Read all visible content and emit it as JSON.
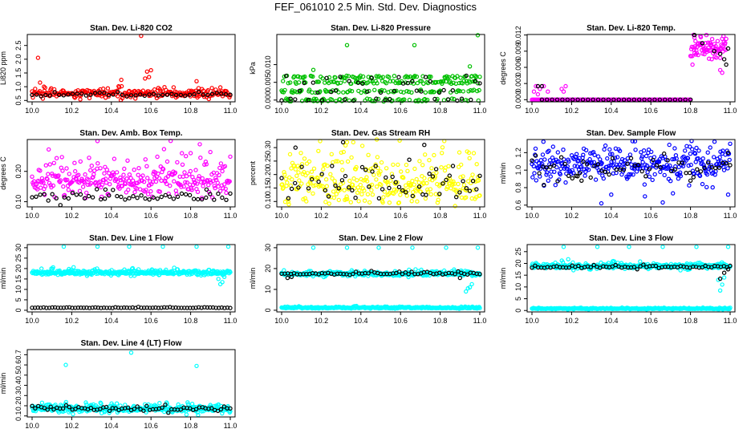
{
  "title": "FEF_061010  2.5 Min. Std. Dev. Diagnostics",
  "colors": {
    "black": "#000000"
  },
  "chart_data": [
    {
      "type": "scatter",
      "title": "Stan. Dev. Li-820 CO2",
      "ylabel": "Li820 ppm",
      "xlim": [
        0.0,
        1.0
      ],
      "ylim": [
        0.45,
        2.9
      ],
      "xticks": [
        0.0,
        0.2,
        0.4,
        0.6,
        0.8,
        1.0
      ],
      "xticklabels": [
        "10.0",
        "10.2",
        "10.4",
        "10.6",
        "10.8",
        "11.0"
      ],
      "yticks": [
        0.5,
        1.0,
        1.5,
        2.0,
        2.5
      ],
      "yticklabels": [
        "0.5",
        "1.0",
        "1.5",
        "2.0",
        "2.5"
      ],
      "color": "#ff0000",
      "series": [
        {
          "role": "colored",
          "base": 0.75,
          "noise": 0.12,
          "count": 260,
          "outliers": [
            [
              0.03,
              2.05
            ],
            [
              0.04,
              1.15
            ],
            [
              0.06,
              1.0
            ],
            [
              0.45,
              1.25
            ],
            [
              0.55,
              2.85
            ],
            [
              0.57,
              1.3
            ],
            [
              0.58,
              1.55
            ],
            [
              0.59,
              1.35
            ],
            [
              0.6,
              1.6
            ],
            [
              0.83,
              1.2
            ],
            [
              0.84,
              0.95
            ]
          ]
        },
        {
          "role": "black",
          "base": 0.72,
          "noise": 0.06,
          "count": 45,
          "outliers": []
        }
      ]
    },
    {
      "type": "scatter",
      "title": "Stan. Dev. Li-820 Pressure",
      "ylabel": "kPa",
      "xlim": [
        0.0,
        1.0
      ],
      "ylim": [
        -0.0005,
        0.0185
      ],
      "xticks": [
        0.0,
        0.2,
        0.4,
        0.6,
        0.8,
        1.0
      ],
      "xticklabels": [
        "10.0",
        "10.2",
        "10.4",
        "10.6",
        "10.8",
        "11.0"
      ],
      "yticks": [
        0.0,
        0.005,
        0.01
      ],
      "yticklabels": [
        "0.000",
        "0.005",
        "0.010"
      ],
      "color": "#00c000",
      "series": [
        {
          "role": "colored",
          "levels": [
            0.0,
            0.0025,
            0.005,
            0.0065
          ],
          "count": 300,
          "outliers": [
            [
              0.16,
              0.0085
            ],
            [
              0.33,
              0.0155
            ],
            [
              0.67,
              0.0155
            ],
            [
              0.99,
              0.0183
            ],
            [
              0.95,
              0.0095
            ]
          ]
        },
        {
          "role": "black",
          "levels": [
            0.0,
            0.0025,
            0.005,
            0.0065
          ],
          "count": 45,
          "outliers": []
        }
      ]
    },
    {
      "type": "scatter",
      "title": "Stan. Dev. Li-820 Temp.",
      "ylabel": "degrees C",
      "xlim": [
        0.0,
        1.0
      ],
      "ylim": [
        -0.0004,
        0.0121
      ],
      "xticks": [
        0.0,
        0.2,
        0.4,
        0.6,
        0.8,
        1.0
      ],
      "xticklabels": [
        "10.0",
        "10.2",
        "10.4",
        "10.6",
        "10.8",
        "11.0"
      ],
      "yticks": [
        0.0,
        0.003,
        0.006,
        0.009,
        0.012
      ],
      "yticklabels": [
        "0.000",
        "0.003",
        "0.006",
        "0.009",
        "0.012"
      ],
      "color": "#ff00ff",
      "series": [
        {
          "role": "colored",
          "base": 0.0,
          "noise": 0.0,
          "count": 170,
          "xrange": [
            0.0,
            0.8
          ],
          "outliers": [
            [
              0.01,
              0.0015
            ],
            [
              0.02,
              0.0025
            ],
            [
              0.03,
              0.001
            ],
            [
              0.04,
              0.002
            ],
            [
              0.06,
              0.0025
            ],
            [
              0.08,
              0.0015
            ],
            [
              0.15,
              0.002
            ],
            [
              0.16,
              0.0015
            ],
            [
              0.17,
              0.0025
            ]
          ]
        },
        {
          "role": "colored",
          "base": 0.0095,
          "noise": 0.0015,
          "count": 80,
          "xrange": [
            0.8,
            0.98
          ],
          "outliers": [
            [
              0.82,
              0.0115
            ],
            [
              0.85,
              0.0118
            ],
            [
              0.88,
              0.012
            ],
            [
              0.9,
              0.0105
            ],
            [
              0.95,
              0.0055
            ],
            [
              0.96,
              0.005
            ],
            [
              0.81,
              0.0065
            ]
          ]
        },
        {
          "role": "black",
          "base": 0.0,
          "noise": 0.0,
          "count": 30,
          "xrange": [
            0.05,
            0.8
          ],
          "outliers": [
            [
              0.03,
              0.0025
            ],
            [
              0.05,
              0.0025
            ],
            [
              0.82,
              0.012
            ],
            [
              0.86,
              0.0105
            ],
            [
              0.92,
              0.009
            ],
            [
              0.95,
              0.0085
            ],
            [
              0.97,
              0.0075
            ],
            [
              0.99,
              0.0095
            ],
            [
              0.98,
              0.0065
            ]
          ]
        }
      ]
    },
    {
      "type": "scatter",
      "title": "Stan. Dev. Amb. Box Temp.",
      "ylabel": "degrees C",
      "xlim": [
        0.0,
        1.0
      ],
      "ylim": [
        0.083,
        0.305
      ],
      "xticks": [
        0.0,
        0.2,
        0.4,
        0.6,
        0.8,
        1.0
      ],
      "xticklabels": [
        "10.0",
        "10.2",
        "10.4",
        "10.6",
        "10.8",
        "11.0"
      ],
      "yticks": [
        0.1,
        0.2
      ],
      "yticklabels": [
        "0.10",
        "0.20"
      ],
      "color": "#ff00ff",
      "series": [
        {
          "role": "colored",
          "base": 0.17,
          "noise": 0.045,
          "count": 300,
          "outliers": [
            [
              0.33,
              0.3
            ],
            [
              0.8,
              0.26
            ]
          ]
        },
        {
          "role": "black",
          "base": 0.115,
          "noise": 0.012,
          "count": 50,
          "outliers": [
            [
              0.37,
              0.14
            ],
            [
              0.88,
              0.14
            ]
          ]
        }
      ]
    },
    {
      "type": "scatter",
      "title": "Stan. Dev. Gas Stream RH",
      "ylabel": "percent",
      "xlim": [
        0.0,
        1.0
      ],
      "ylim": [
        0.08,
        0.33
      ],
      "xticks": [
        0.0,
        0.2,
        0.4,
        0.6,
        0.8,
        1.0
      ],
      "xticklabels": [
        "10.0",
        "10.2",
        "10.4",
        "10.6",
        "10.8",
        "11.0"
      ],
      "yticks": [
        0.1,
        0.15,
        0.2,
        0.25,
        0.3
      ],
      "yticklabels": [
        "0.10",
        "0.15",
        "0.20",
        "0.25",
        "0.30"
      ],
      "color": "#ffff00",
      "series": [
        {
          "role": "colored",
          "base": 0.17,
          "noise": 0.08,
          "count": 330,
          "outliers": [
            [
              0.33,
              0.32
            ],
            [
              0.48,
              0.33
            ]
          ]
        },
        {
          "role": "black",
          "base": 0.16,
          "noise": 0.07,
          "count": 60,
          "outliers": [
            [
              0.07,
              0.3
            ],
            [
              0.31,
              0.32
            ],
            [
              0.72,
              0.31
            ]
          ]
        }
      ]
    },
    {
      "type": "scatter",
      "title": "Stan. Dev. Sample Flow",
      "ylabel": "ml/min",
      "xlim": [
        0.0,
        1.0
      ],
      "ylim": [
        0.58,
        1.35
      ],
      "xticks": [
        0.0,
        0.2,
        0.4,
        0.6,
        0.8,
        1.0
      ],
      "xticklabels": [
        "10.0",
        "10.2",
        "10.4",
        "10.6",
        "10.8",
        "11.0"
      ],
      "yticks": [
        0.6,
        0.8,
        1.0,
        1.2
      ],
      "yticklabels": [
        "0.6",
        "0.8",
        "1.0",
        "1.2"
      ],
      "color": "#0000ff",
      "series": [
        {
          "role": "colored",
          "base": 1.06,
          "noise": 0.14,
          "count": 330,
          "outliers": [
            [
              0.35,
              0.62
            ],
            [
              0.66,
              0.63
            ],
            [
              0.52,
              1.33
            ],
            [
              0.99,
              0.72
            ],
            [
              0.4,
              0.72
            ],
            [
              0.57,
              0.7
            ]
          ]
        },
        {
          "role": "black",
          "base": 1.02,
          "noise": 0.1,
          "count": 55,
          "outliers": [
            [
              0.06,
              0.83
            ],
            [
              0.23,
              0.93
            ],
            [
              0.25,
              0.88
            ],
            [
              0.8,
              0.88
            ],
            [
              0.99,
              1.2
            ]
          ]
        }
      ]
    },
    {
      "type": "scatter",
      "title": "Stan. Dev. Line 1 Flow",
      "ylabel": "ml/min",
      "xlim": [
        0.0,
        1.0
      ],
      "ylim": [
        -0.8,
        31.5
      ],
      "xticks": [
        0.0,
        0.2,
        0.4,
        0.6,
        0.8,
        1.0
      ],
      "xticklabels": [
        "10.0",
        "10.2",
        "10.4",
        "10.6",
        "10.8",
        "11.0"
      ],
      "yticks": [
        0,
        5,
        10,
        15,
        20,
        25,
        30
      ],
      "yticklabels": [
        "0",
        "5",
        "10",
        "15",
        "20",
        "25",
        "30"
      ],
      "color": "#00ffff",
      "series": [
        {
          "role": "colored",
          "base": 18.0,
          "noise": 0.9,
          "count": 340,
          "outliers": [
            [
              0.16,
              30.5
            ],
            [
              0.33,
              30.5
            ],
            [
              0.49,
              30.5
            ],
            [
              0.66,
              30.5
            ],
            [
              0.83,
              30.5
            ],
            [
              0.99,
              30.5
            ],
            [
              0.95,
              12.5
            ],
            [
              0.96,
              13.5
            ],
            [
              0.94,
              15
            ],
            [
              0.97,
              16
            ]
          ]
        },
        {
          "role": "black",
          "base": 1.2,
          "noise": 0.15,
          "count": 70,
          "outliers": []
        }
      ]
    },
    {
      "type": "scatter",
      "title": "Stan. Dev. Line 2 Flow",
      "ylabel": "ml/min",
      "xlim": [
        0.0,
        1.0
      ],
      "ylim": [
        -0.8,
        31.5
      ],
      "xticks": [
        0.0,
        0.2,
        0.4,
        0.6,
        0.8,
        1.0
      ],
      "xticklabels": [
        "10.0",
        "10.2",
        "10.4",
        "10.6",
        "10.8",
        "11.0"
      ],
      "yticks": [
        0,
        10,
        20,
        30
      ],
      "yticklabels": [
        "0",
        "10",
        "20",
        "30"
      ],
      "color": "#00ffff",
      "series": [
        {
          "role": "colored",
          "base": 17.5,
          "noise": 0.9,
          "count": 340,
          "outliers": [
            [
              0.16,
              30.0
            ],
            [
              0.33,
              30.0
            ],
            [
              0.49,
              30.0
            ],
            [
              0.66,
              30.0
            ],
            [
              0.83,
              30.0
            ],
            [
              0.99,
              30.0
            ],
            [
              0.93,
              9
            ],
            [
              0.94,
              10.5
            ],
            [
              0.95,
              11
            ],
            [
              0.96,
              12.5
            ]
          ]
        },
        {
          "role": "colored",
          "base": 1.2,
          "noise": 0.3,
          "count": 300,
          "outliers": []
        },
        {
          "role": "black",
          "base": 17.5,
          "noise": 0.5,
          "count": 65,
          "outliers": [
            [
              0.03,
              15.5
            ],
            [
              0.05,
              16.0
            ],
            [
              0.9,
              15.5
            ]
          ]
        }
      ]
    },
    {
      "type": "scatter",
      "title": "Stan. Dev. Line 3 Flow",
      "ylabel": "ml/min",
      "xlim": [
        0.0,
        1.0
      ],
      "ylim": [
        -0.6,
        28.0
      ],
      "xticks": [
        0.0,
        0.2,
        0.4,
        0.6,
        0.8,
        1.0
      ],
      "xticklabels": [
        "10.0",
        "10.2",
        "10.4",
        "10.6",
        "10.8",
        "11.0"
      ],
      "yticks": [
        0,
        5,
        10,
        15,
        20,
        25
      ],
      "yticklabels": [
        "0",
        "5",
        "10",
        "15",
        "20",
        "25"
      ],
      "color": "#00ffff",
      "series": [
        {
          "role": "colored",
          "base": 18.8,
          "noise": 0.9,
          "count": 340,
          "outliers": [
            [
              0.16,
              27.0
            ],
            [
              0.33,
              27.0
            ],
            [
              0.49,
              27.0
            ],
            [
              0.66,
              27.0
            ],
            [
              0.83,
              27.0
            ],
            [
              0.99,
              27.0
            ],
            [
              0.95,
              8.5
            ],
            [
              0.96,
              11.0
            ],
            [
              0.94,
              13.0
            ],
            [
              0.97,
              14.0
            ],
            [
              0.41,
              21.0
            ]
          ]
        },
        {
          "role": "colored",
          "base": 0.8,
          "noise": 0.2,
          "count": 300,
          "outliers": []
        },
        {
          "role": "black",
          "base": 18.5,
          "noise": 0.5,
          "count": 65,
          "outliers": [
            [
              0.95,
              13.5
            ],
            [
              0.97,
              16.0
            ],
            [
              0.99,
              17.5
            ]
          ]
        }
      ]
    },
    {
      "type": "scatter",
      "title": "Stan. Dev. Line 4 (LT) Flow",
      "ylabel": "ml/min",
      "xlim": [
        0.0,
        1.0
      ],
      "ylim": [
        0.09,
        0.75
      ],
      "xticks": [
        0.0,
        0.2,
        0.4,
        0.6,
        0.8,
        1.0
      ],
      "xticklabels": [
        "10.0",
        "10.2",
        "10.4",
        "10.6",
        "10.8",
        "11.0"
      ],
      "yticks": [
        0.1,
        0.2,
        0.3,
        0.4,
        0.5,
        0.6,
        0.7
      ],
      "yticklabels": [
        "0.1",
        "0.2",
        "0.3",
        "0.4",
        "0.5",
        "0.6",
        "0.7"
      ],
      "color": "#00ffff",
      "series": [
        {
          "role": "colored",
          "base": 0.17,
          "noise": 0.03,
          "count": 340,
          "outliers": [
            [
              0.17,
              0.6
            ],
            [
              0.5,
              0.72
            ],
            [
              0.83,
              0.59
            ]
          ]
        },
        {
          "role": "black",
          "base": 0.17,
          "noise": 0.02,
          "count": 65,
          "outliers": []
        }
      ]
    }
  ]
}
